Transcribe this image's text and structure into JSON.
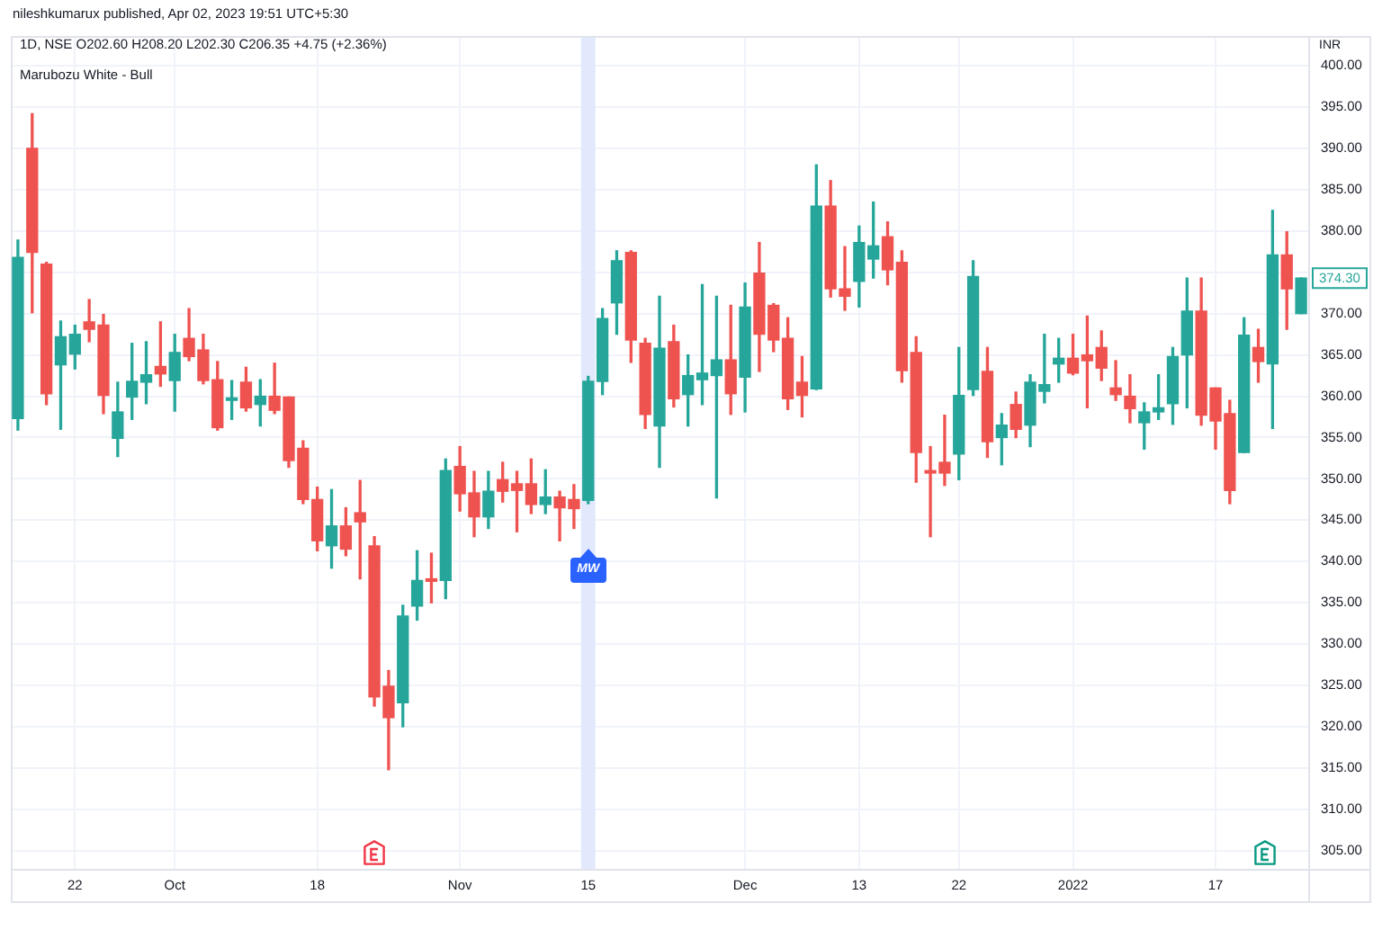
{
  "chart_data": {
    "type": "candlestick",
    "title": "1D, NSE O202.60 H208.20 L202.30 C206.35 +4.75 (+2.36%)",
    "subtitle": "Marubozu White - Bull",
    "ylabel": "INR",
    "categories": [
      null,
      null,
      null,
      null,
      "22",
      null,
      null,
      null,
      null,
      null,
      null,
      "Oct",
      null,
      null,
      null,
      null,
      null,
      null,
      null,
      null,
      null,
      "18",
      null,
      null,
      null,
      null,
      null,
      null,
      null,
      null,
      null,
      "Nov",
      null,
      null,
      null,
      null,
      null,
      null,
      null,
      null,
      "15",
      null,
      null,
      null,
      null,
      null,
      null,
      null,
      null,
      null,
      null,
      "Dec",
      null,
      null,
      null,
      null,
      null,
      null,
      null,
      "13",
      null,
      null,
      null,
      null,
      null,
      null,
      "22",
      null,
      null,
      null,
      null,
      null,
      null,
      null,
      "2022",
      null,
      null,
      null,
      null,
      null,
      null,
      null,
      null,
      null,
      "17",
      null,
      null,
      null,
      null,
      null,
      null
    ],
    "ohlc": [
      [
        357.3,
        378.9,
        355.9,
        376.8
      ],
      [
        390.0,
        394.2,
        370.1,
        377.4
      ],
      [
        376.0,
        376.2,
        359.0,
        360.3
      ],
      [
        363.8,
        369.1,
        356.0,
        367.2
      ],
      [
        365.1,
        368.6,
        363.3,
        367.5
      ],
      [
        369.0,
        371.7,
        366.6,
        368.1
      ],
      [
        368.6,
        369.9,
        357.9,
        360.1
      ],
      [
        354.9,
        361.7,
        352.7,
        358.1
      ],
      [
        359.9,
        366.4,
        357.2,
        361.8
      ],
      [
        361.7,
        366.6,
        359.1,
        362.6
      ],
      [
        363.6,
        369.0,
        361.2,
        362.7
      ],
      [
        361.9,
        367.5,
        358.2,
        365.3
      ],
      [
        367.0,
        370.6,
        364.3,
        364.8
      ],
      [
        365.6,
        367.5,
        361.5,
        361.9
      ],
      [
        362.0,
        364.2,
        355.9,
        356.2
      ],
      [
        359.5,
        361.9,
        357.2,
        359.8
      ],
      [
        361.7,
        363.5,
        358.2,
        358.6
      ],
      [
        359.0,
        362.0,
        356.4,
        360.0
      ],
      [
        360.0,
        364.0,
        357.9,
        358.3
      ],
      [
        359.9,
        359.9,
        351.4,
        352.2
      ],
      [
        353.7,
        354.6,
        347.0,
        347.5
      ],
      [
        347.5,
        349.0,
        341.3,
        342.5
      ],
      [
        341.9,
        348.7,
        339.2,
        344.3
      ],
      [
        344.3,
        346.5,
        340.7,
        341.5
      ],
      [
        345.9,
        349.8,
        337.9,
        344.8
      ],
      [
        341.9,
        343.0,
        322.5,
        323.6
      ],
      [
        324.9,
        326.8,
        314.8,
        321.1
      ],
      [
        322.9,
        334.7,
        320.0,
        333.4
      ],
      [
        334.6,
        341.3,
        332.9,
        337.7
      ],
      [
        337.9,
        341.0,
        335.0,
        337.6
      ],
      [
        337.7,
        352.4,
        335.5,
        351.0
      ],
      [
        351.5,
        353.9,
        346.1,
        348.2
      ],
      [
        348.3,
        350.9,
        343.0,
        345.4
      ],
      [
        345.4,
        350.9,
        344.0,
        348.5
      ],
      [
        349.9,
        352.0,
        347.2,
        348.5
      ],
      [
        349.4,
        350.9,
        343.6,
        348.6
      ],
      [
        349.4,
        352.4,
        345.8,
        346.9
      ],
      [
        346.9,
        351.1,
        345.8,
        347.8
      ],
      [
        347.8,
        348.5,
        342.5,
        346.5
      ],
      [
        347.5,
        349.3,
        344.0,
        346.4
      ],
      [
        347.4,
        362.4,
        347.0,
        361.8
      ],
      [
        361.8,
        370.6,
        360.2,
        369.4
      ],
      [
        371.3,
        377.6,
        367.5,
        376.4
      ],
      [
        377.4,
        377.6,
        364.1,
        366.8
      ],
      [
        366.4,
        367.0,
        356.1,
        357.8
      ],
      [
        356.4,
        372.1,
        351.4,
        365.8
      ],
      [
        366.6,
        368.6,
        358.7,
        359.7
      ],
      [
        360.2,
        365.0,
        356.4,
        362.5
      ],
      [
        362.0,
        373.5,
        359.0,
        362.8
      ],
      [
        362.5,
        372.1,
        347.7,
        364.4
      ],
      [
        364.4,
        371.0,
        357.8,
        360.3
      ],
      [
        362.3,
        373.7,
        358.1,
        370.8
      ],
      [
        374.9,
        378.6,
        363.0,
        367.5
      ],
      [
        371.0,
        371.2,
        365.4,
        366.8
      ],
      [
        367.0,
        369.5,
        358.4,
        359.7
      ],
      [
        361.7,
        364.8,
        357.5,
        360.1
      ],
      [
        360.9,
        388.0,
        360.8,
        383.0
      ],
      [
        383.0,
        386.1,
        372.0,
        373.0
      ],
      [
        373.0,
        378.1,
        370.4,
        372.1
      ],
      [
        373.9,
        380.6,
        370.8,
        378.6
      ],
      [
        376.6,
        383.5,
        374.3,
        378.2
      ],
      [
        379.3,
        381.1,
        373.5,
        375.3
      ],
      [
        376.2,
        377.6,
        361.7,
        363.1
      ],
      [
        365.3,
        367.2,
        349.6,
        353.2
      ],
      [
        351.0,
        353.9,
        343.0,
        350.7
      ],
      [
        352.0,
        357.7,
        349.2,
        350.7
      ],
      [
        353.0,
        365.9,
        349.9,
        360.1
      ],
      [
        360.8,
        376.4,
        360.1,
        374.5
      ],
      [
        363.0,
        365.9,
        352.6,
        354.5
      ],
      [
        355.0,
        357.9,
        351.7,
        356.5
      ],
      [
        359.0,
        360.5,
        355.0,
        356.0
      ],
      [
        356.5,
        362.6,
        353.9,
        361.7
      ],
      [
        360.6,
        367.5,
        359.2,
        361.4
      ],
      [
        363.9,
        367.0,
        361.7,
        364.6
      ],
      [
        364.6,
        367.5,
        362.6,
        362.8
      ],
      [
        365.0,
        369.7,
        358.6,
        364.3
      ],
      [
        365.9,
        367.9,
        361.9,
        363.4
      ],
      [
        361.0,
        364.3,
        359.5,
        360.2
      ],
      [
        360.0,
        362.6,
        356.8,
        358.5
      ],
      [
        356.8,
        359.2,
        353.6,
        358.1
      ],
      [
        358.1,
        362.6,
        357.2,
        358.6
      ],
      [
        359.1,
        365.9,
        356.6,
        364.8
      ],
      [
        365.0,
        374.3,
        358.6,
        370.3
      ],
      [
        370.3,
        374.3,
        356.5,
        357.7
      ],
      [
        361.0,
        361.0,
        353.6,
        357.0
      ],
      [
        357.9,
        359.5,
        347.0,
        348.6
      ],
      [
        353.2,
        369.5,
        353.2,
        367.4
      ],
      [
        365.9,
        368.1,
        361.7,
        364.2
      ],
      [
        363.9,
        382.5,
        356.1,
        377.1
      ],
      [
        377.1,
        379.9,
        368.1,
        373.0
      ],
      [
        370.0,
        374.3,
        370.0,
        374.3
      ]
    ],
    "colors": [
      "#26a69a",
      "#ef5350",
      "#ef5350",
      "#26a69a",
      "#26a69a",
      "#ef5350",
      "#ef5350",
      "#26a69a",
      "#26a69a",
      "#26a69a",
      "#ef5350",
      "#26a69a",
      "#ef5350",
      "#ef5350",
      "#ef5350",
      "#26a69a",
      "#ef5350",
      "#26a69a",
      "#ef5350",
      "#ef5350",
      "#ef5350",
      "#ef5350",
      "#26a69a",
      "#ef5350",
      "#ef5350",
      "#ef5350",
      "#ef5350",
      "#26a69a",
      "#26a69a",
      "#ef5350",
      "#26a69a",
      "#ef5350",
      "#ef5350",
      "#26a69a",
      "#ef5350",
      "#ef5350",
      "#ef5350",
      "#26a69a",
      "#ef5350",
      "#ef5350",
      "#26a69a",
      "#26a69a",
      "#26a69a",
      "#ef5350",
      "#ef5350",
      "#26a69a",
      "#ef5350",
      "#26a69a",
      "#26a69a",
      "#26a69a",
      "#ef5350",
      "#26a69a",
      "#ef5350",
      "#ef5350",
      "#ef5350",
      "#ef5350",
      "#26a69a",
      "#ef5350",
      "#ef5350",
      "#26a69a",
      "#26a69a",
      "#ef5350",
      "#ef5350",
      "#ef5350",
      "#ef5350",
      "#ef5350",
      "#26a69a",
      "#26a69a",
      "#ef5350",
      "#26a69a",
      "#ef5350",
      "#26a69a",
      "#26a69a",
      "#26a69a",
      "#ef5350",
      "#ef5350",
      "#ef5350",
      "#ef5350",
      "#ef5350",
      "#26a69a",
      "#26a69a",
      "#26a69a",
      "#26a69a",
      "#ef5350",
      "#ef5350",
      "#ef5350",
      "#26a69a",
      "#ef5350",
      "#26a69a",
      "#ef5350",
      "#26a69a"
    ],
    "value_labels": [
      null,
      null,
      null,
      null,
      null,
      null,
      null,
      null,
      null,
      null,
      null,
      null,
      null,
      null,
      null,
      null,
      null,
      null,
      null,
      null,
      null,
      null,
      null,
      null,
      null,
      null,
      null,
      null,
      null,
      null,
      null,
      null,
      null,
      null,
      null,
      null,
      null,
      null,
      null,
      null,
      null,
      null,
      null,
      null,
      null,
      null,
      null,
      null,
      null,
      null,
      null,
      null,
      null,
      null,
      null,
      null,
      null,
      null,
      null,
      null,
      null,
      null,
      null,
      null,
      null,
      null,
      null,
      null,
      null,
      null,
      null,
      null,
      null,
      null,
      null,
      null,
      null,
      null,
      null,
      null,
      null,
      null,
      null,
      null,
      null,
      null,
      null,
      null,
      null,
      null,
      "374.30"
    ],
    "ylim": [
      302.8,
      403.6
    ],
    "yticks": [
      {
        "value": 305,
        "label": "305.00"
      },
      {
        "value": 310,
        "label": "310.00"
      },
      {
        "value": 315,
        "label": "315.00"
      },
      {
        "value": 320,
        "label": "320.00"
      },
      {
        "value": 325,
        "label": "325.00"
      },
      {
        "value": 330,
        "label": "330.00"
      },
      {
        "value": 335,
        "label": "335.00"
      },
      {
        "value": 340,
        "label": "340.00"
      },
      {
        "value": 345,
        "label": "345.00"
      },
      {
        "value": 350,
        "label": "350.00"
      },
      {
        "value": 355,
        "label": "355.00"
      },
      {
        "value": 360,
        "label": "360.00"
      },
      {
        "value": 365,
        "label": "365.00"
      },
      {
        "value": 370,
        "label": "370.00"
      },
      {
        "value": 375,
        "label": null
      },
      {
        "value": 380,
        "label": "380.00"
      },
      {
        "value": 385,
        "label": "385.00"
      },
      {
        "value": 390,
        "label": "390.00"
      },
      {
        "value": 395,
        "label": "395.00"
      },
      {
        "value": 400,
        "label": "400.00"
      }
    ],
    "grid": true,
    "bands": [
      {
        "axis": "x",
        "from": "15",
        "to": "15",
        "color": "#e3e9fd"
      }
    ],
    "annotations": [
      "nileshkumarux published, Apr 02, 2023 19:51 UTC+5:30",
      {
        "text": "MW",
        "x": "15"
      }
    ]
  }
}
